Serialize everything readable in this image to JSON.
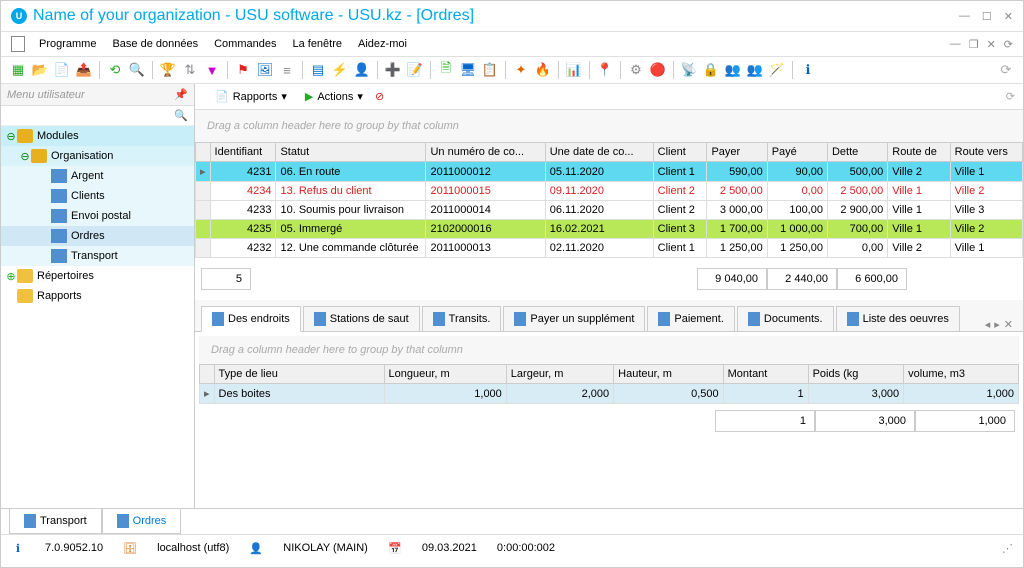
{
  "window": {
    "title": "Name of your organization - USU software - USU.kz - [Ordres]"
  },
  "menubar": {
    "items": [
      "Programme",
      "Base de données",
      "Commandes",
      "La fenêtre",
      "Aidez-moi"
    ]
  },
  "sidebar": {
    "header": "Menu utilisateur",
    "modules": "Modules",
    "organisation": "Organisation",
    "leaves": [
      "Argent",
      "Clients",
      "Envoi postal",
      "Ordres",
      "Transport"
    ],
    "selected_leaf": 3,
    "repertoires": "Répertoires",
    "rapports": "Rapports"
  },
  "content_toolbar": {
    "rapports": "Rapports",
    "actions": "Actions"
  },
  "group_hint": "Drag a column header here to group by that column",
  "main_grid": {
    "columns": [
      "Identifiant",
      "Statut",
      "Un numéro de co...",
      "Une date de co...",
      "Client",
      "Payer",
      "Payé",
      "Dette",
      "Route de",
      "Route vers"
    ],
    "rows": [
      {
        "style": "cyan",
        "marker": "▸",
        "cells": [
          "4231",
          "06. En route",
          "2011000012",
          "05.11.2020",
          "Client 1",
          "590,00",
          "90,00",
          "500,00",
          "Ville 2",
          "Ville 1"
        ]
      },
      {
        "style": "red",
        "marker": "",
        "cells": [
          "4234",
          "13. Refus du client",
          "2011000015",
          "09.11.2020",
          "Client 2",
          "2 500,00",
          "0,00",
          "2 500,00",
          "Ville 1",
          "Ville 2"
        ]
      },
      {
        "style": "",
        "marker": "",
        "cells": [
          "4233",
          "10. Soumis pour livraison",
          "2011000014",
          "06.11.2020",
          "Client 2",
          "3 000,00",
          "100,00",
          "2 900,00",
          "Ville 1",
          "Ville 3"
        ]
      },
      {
        "style": "green",
        "marker": "",
        "cells": [
          "4235",
          "05. Immergé",
          "2102000016",
          "16.02.2021",
          "Client 3",
          "1 700,00",
          "1 000,00",
          "700,00",
          "Ville 1",
          "Ville 2"
        ]
      },
      {
        "style": "",
        "marker": "",
        "cells": [
          "4232",
          "12. Une commande clôturée",
          "2011000013",
          "02.11.2020",
          "Client 1",
          "1 250,00",
          "1 250,00",
          "0,00",
          "Ville 2",
          "Ville 1"
        ]
      }
    ],
    "totals": {
      "count": "5",
      "payer": "9 040,00",
      "paye": "2 440,00",
      "dette": "6 600,00"
    }
  },
  "detail_tabs": [
    "Des endroits",
    "Stations de saut",
    "Transits.",
    "Payer un supplément",
    "Paiement.",
    "Documents.",
    "Liste des oeuvres"
  ],
  "detail_grid": {
    "columns": [
      "Type de lieu",
      "Longueur, m",
      "Largeur, m",
      "Hauteur, m",
      "Montant",
      "Poids (kg",
      "volume, m3"
    ],
    "row": [
      "Des boites",
      "1,000",
      "2,000",
      "0,500",
      "1",
      "3,000",
      "1,000"
    ],
    "totals": [
      "",
      "",
      "",
      "",
      "1",
      "3,000",
      "1,000"
    ]
  },
  "bottom_tabs": [
    "Transport",
    "Ordres"
  ],
  "statusbar": {
    "version": "7.0.9052.10",
    "host": "localhost (utf8)",
    "user": "NIKOLAY (MAIN)",
    "date": "09.03.2021",
    "time": "0:00:00:002"
  },
  "colors": {
    "cyan_row": "#5ed9f0",
    "green_row": "#b8e858",
    "red_text": "#d02020",
    "accent": "#00a8e8"
  }
}
